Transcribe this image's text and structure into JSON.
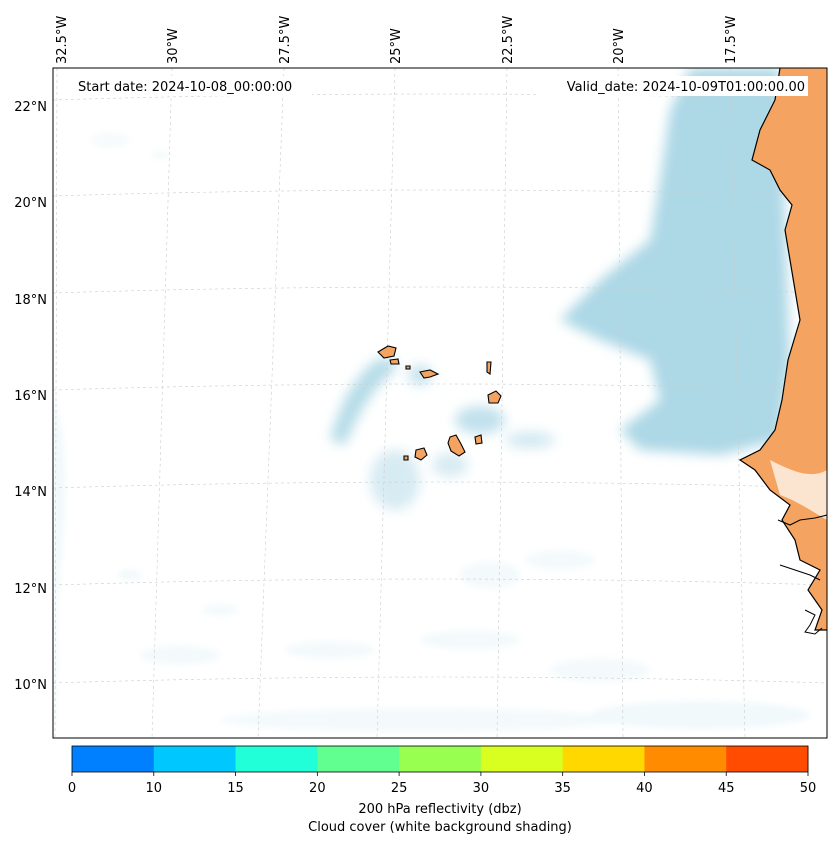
{
  "map": {
    "header": {
      "start_date": "Start date: 2024-10-08_00:00:00",
      "valid_date": "Valid_date: 2024-10-09T01:00:00.00"
    },
    "lon_labels": [
      "32.5°W",
      "30°W",
      "27.5°W",
      "25°W",
      "22.5°W",
      "20°W",
      "17.5°W"
    ],
    "lat_labels": [
      "22°N",
      "20°N",
      "18°N",
      "16°N",
      "14°N",
      "12°N",
      "10°N"
    ],
    "colorbar": {
      "ticks": [
        "0",
        "10",
        "15",
        "20",
        "25",
        "30",
        "35",
        "40",
        "45",
        "50"
      ],
      "colors": [
        "#0080ff",
        "#00c8ff",
        "#20ffd8",
        "#60ff90",
        "#98ff50",
        "#d8ff20",
        "#ffd800",
        "#ff8c00",
        "#ff4c00"
      ],
      "label_line1": "200 hPa reflectivity (dbz)",
      "label_line2": "Cloud cover (white background shading)"
    },
    "colors": {
      "cloud": "#add8e6",
      "land": "#f4a460",
      "coast": "#000000",
      "grid": "#cccccc"
    }
  }
}
